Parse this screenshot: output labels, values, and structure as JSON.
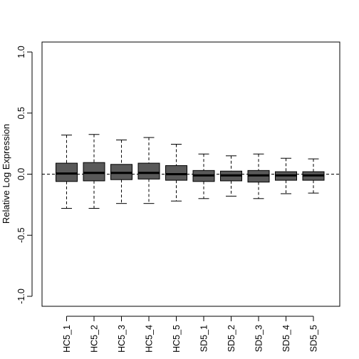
{
  "chart_data": {
    "type": "boxplot",
    "title": "",
    "xlabel": "",
    "ylabel": "Relative Log Expression",
    "ylim": [
      -1.0,
      1.0
    ],
    "yticks": [
      -1.0,
      -0.5,
      0.0,
      0.5,
      1.0
    ],
    "ytick_labels": [
      "-1.0",
      "-0.5",
      "0.0",
      "0.5",
      "1.0"
    ],
    "reference_line": 0.0,
    "grid": false,
    "box_color": "#595959",
    "median_color": "#000000",
    "categories": [
      "HC5_1",
      "HC5_2",
      "HC5_3",
      "HC5_4",
      "HC5_5",
      "SD5_1",
      "SD5_2",
      "SD5_3",
      "SD5_4",
      "SD5_5"
    ],
    "boxes": [
      {
        "label": "HC5_1",
        "whisker_low": -0.28,
        "q1": -0.06,
        "median": 0.005,
        "q3": 0.09,
        "whisker_high": 0.32
      },
      {
        "label": "HC5_2",
        "whisker_low": -0.28,
        "q1": -0.055,
        "median": 0.01,
        "q3": 0.095,
        "whisker_high": 0.325
      },
      {
        "label": "HC5_3",
        "whisker_low": -0.24,
        "q1": -0.045,
        "median": 0.01,
        "q3": 0.08,
        "whisker_high": 0.28
      },
      {
        "label": "HC5_4",
        "whisker_low": -0.24,
        "q1": -0.04,
        "median": 0.01,
        "q3": 0.09,
        "whisker_high": 0.3
      },
      {
        "label": "HC5_5",
        "whisker_low": -0.22,
        "q1": -0.05,
        "median": 0.0,
        "q3": 0.07,
        "whisker_high": 0.245
      },
      {
        "label": "SD5_1",
        "whisker_low": -0.2,
        "q1": -0.06,
        "median": -0.01,
        "q3": 0.03,
        "whisker_high": 0.165
      },
      {
        "label": "SD5_2",
        "whisker_low": -0.18,
        "q1": -0.055,
        "median": -0.01,
        "q3": 0.025,
        "whisker_high": 0.15
      },
      {
        "label": "SD5_3",
        "whisker_low": -0.2,
        "q1": -0.065,
        "median": -0.01,
        "q3": 0.03,
        "whisker_high": 0.165
      },
      {
        "label": "SD5_4",
        "whisker_low": -0.16,
        "q1": -0.05,
        "median": -0.01,
        "q3": 0.02,
        "whisker_high": 0.13
      },
      {
        "label": "SD5_5",
        "whisker_low": -0.155,
        "q1": -0.05,
        "median": -0.01,
        "q3": 0.02,
        "whisker_high": 0.125
      }
    ]
  }
}
